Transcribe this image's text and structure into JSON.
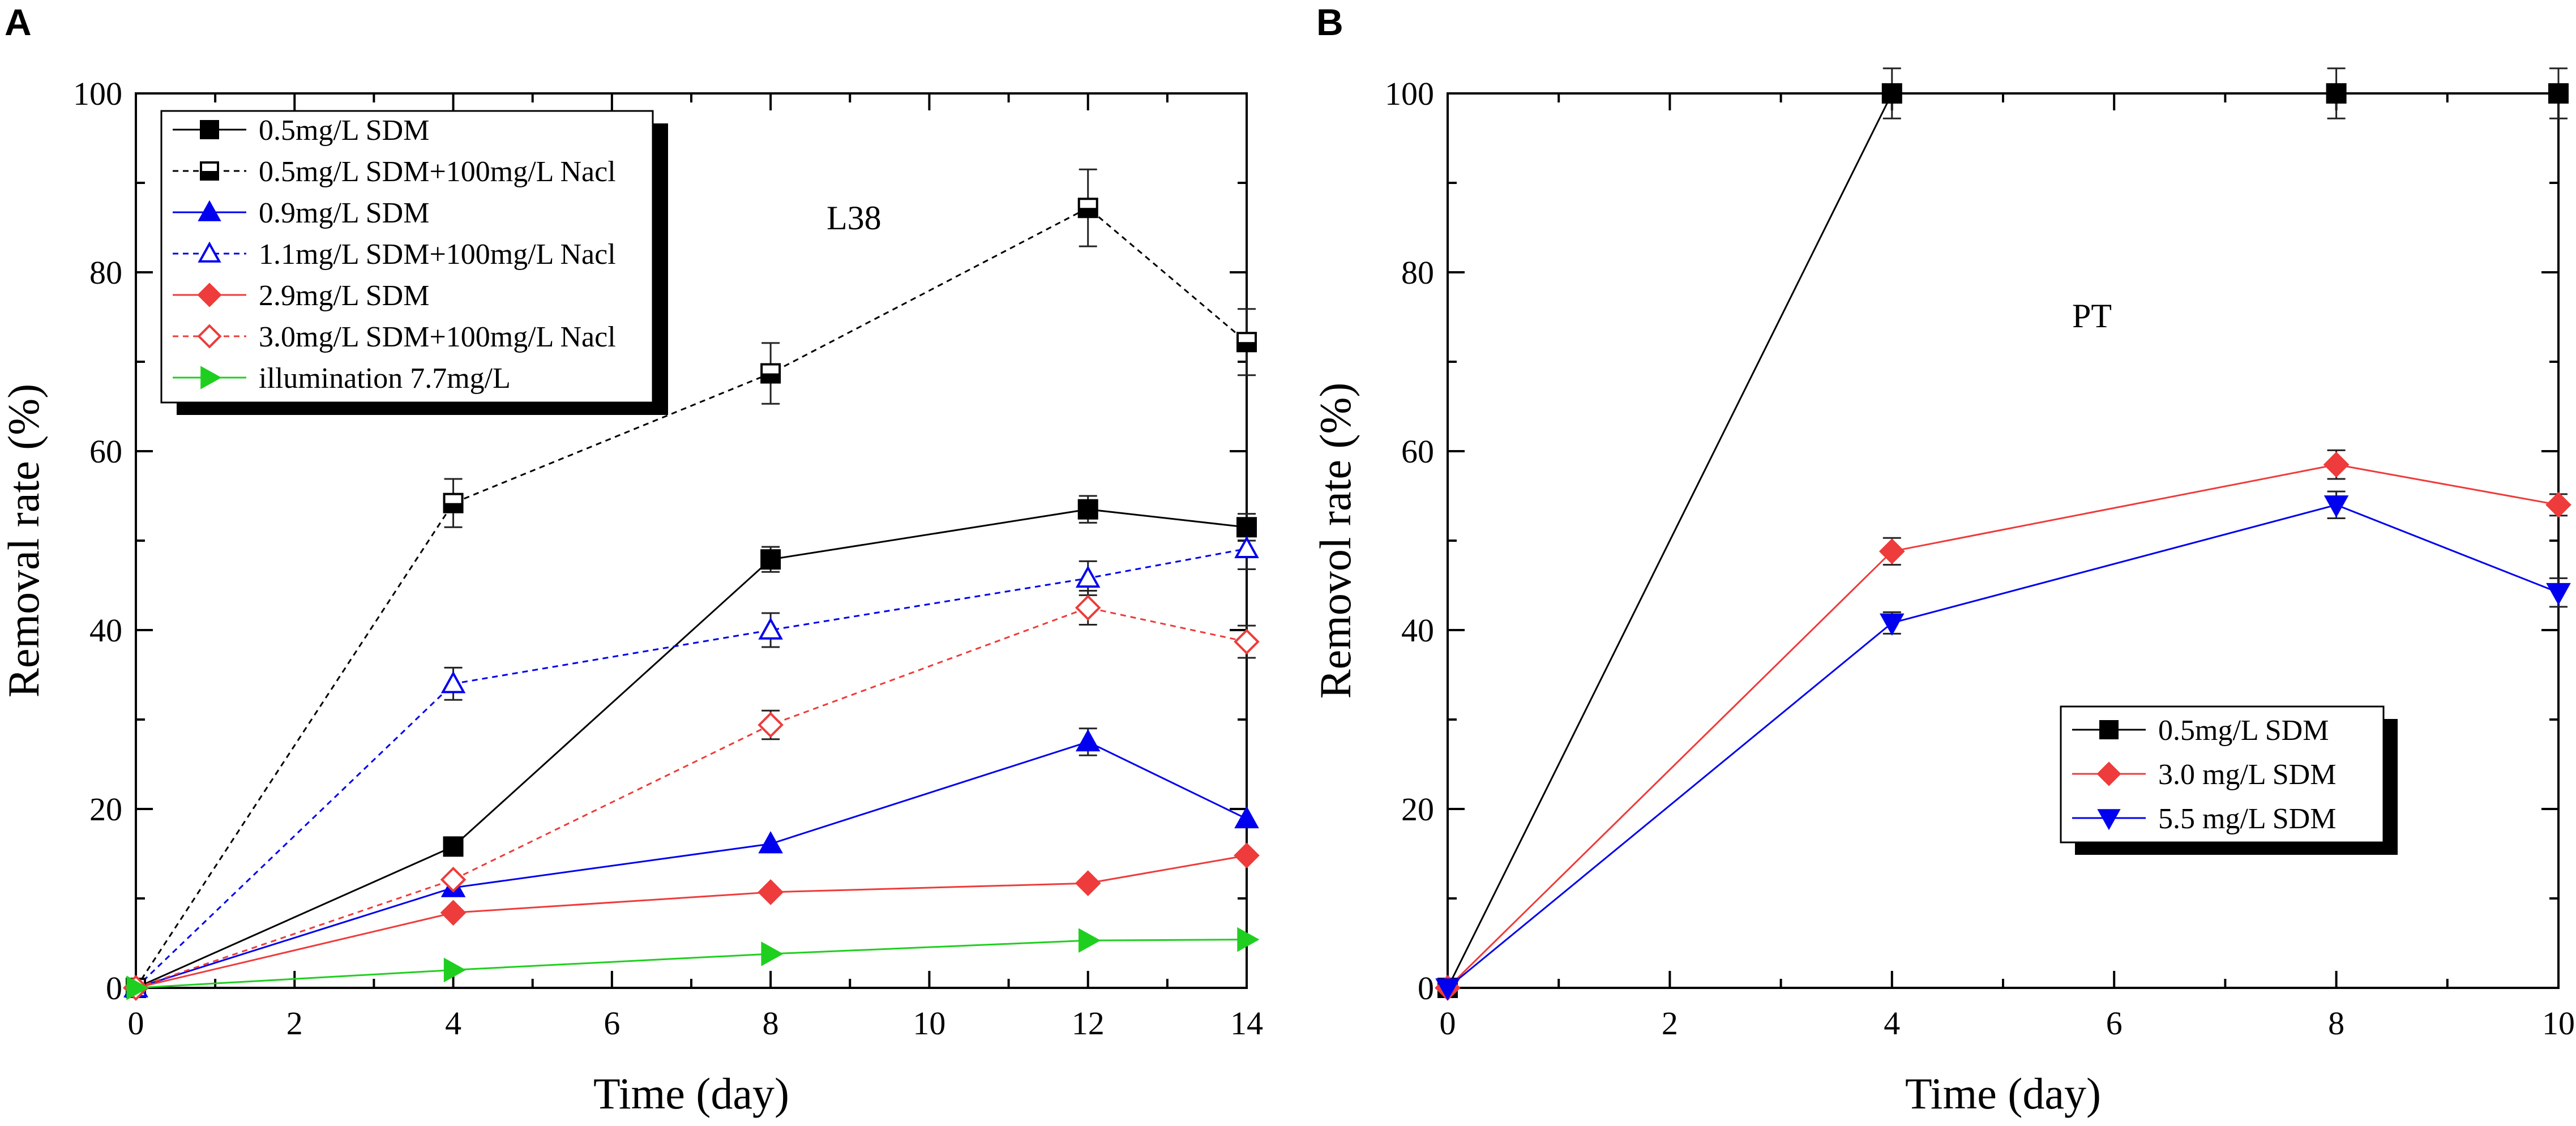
{
  "chart_data": [
    {
      "panel_label": "A",
      "type": "line",
      "annotation": "L38",
      "xlabel": "Time (day)",
      "ylabel": "Removal rate (%)",
      "xlim": [
        0,
        14
      ],
      "ylim": [
        0,
        100
      ],
      "xticks": [
        0,
        2,
        4,
        6,
        8,
        10,
        12,
        14
      ],
      "yticks": [
        0,
        20,
        40,
        60,
        80,
        100
      ],
      "legend_position": "top-left",
      "series": [
        {
          "name": "0.5mg/L SDM",
          "color": "#000000",
          "marker": "square",
          "filled": true,
          "dashed": false,
          "x": [
            0,
            4,
            8,
            12,
            14
          ],
          "y": [
            0,
            15.8,
            47.9,
            53.5,
            51.5
          ],
          "err": [
            0,
            0,
            1.4,
            1.5,
            1.5
          ]
        },
        {
          "name": "0.5mg/L SDM+100mg/L Nacl",
          "color": "#000000",
          "marker": "half-square",
          "filled": false,
          "dashed": true,
          "x": [
            0,
            4,
            8,
            12,
            14
          ],
          "y": [
            0,
            54.2,
            68.7,
            87.2,
            72.2
          ],
          "err": [
            0,
            2.7,
            3.4,
            4.3,
            3.7
          ]
        },
        {
          "name": "0.9mg/L SDM",
          "color": "#0000ee",
          "marker": "triangle-up",
          "filled": true,
          "dashed": false,
          "x": [
            0,
            4,
            8,
            12,
            14
          ],
          "y": [
            0,
            11.2,
            16.1,
            27.5,
            18.9
          ],
          "err": [
            0,
            0,
            0,
            1.5,
            0
          ]
        },
        {
          "name": "1.1mg/L SDM+100mg/L Nacl",
          "color": "#0000ee",
          "marker": "triangle-up",
          "filled": false,
          "dashed": true,
          "x": [
            0,
            4,
            8,
            12,
            14
          ],
          "y": [
            0,
            34,
            40,
            45.8,
            49.1
          ],
          "err": [
            0,
            1.8,
            1.9,
            1.9,
            2.3
          ]
        },
        {
          "name": "2.9mg/L SDM",
          "color": "#ee3b3b",
          "marker": "diamond",
          "filled": true,
          "dashed": false,
          "x": [
            0,
            4,
            8,
            12,
            14
          ],
          "y": [
            0,
            8.4,
            10.7,
            11.7,
            14.8
          ],
          "err": [
            0,
            0,
            0,
            0,
            0
          ]
        },
        {
          "name": "3.0mg/L SDM+100mg/L Nacl",
          "color": "#ee3b3b",
          "marker": "diamond",
          "filled": false,
          "dashed": true,
          "x": [
            0,
            4,
            8,
            12,
            14
          ],
          "y": [
            0,
            12.1,
            29.4,
            42.5,
            38.7
          ],
          "err": [
            0,
            0,
            1.6,
            1.9,
            1.8
          ]
        },
        {
          "name": "illumination 7.7mg/L",
          "color": "#1fcf1f",
          "marker": "triangle-right",
          "filled": true,
          "dashed": false,
          "x": [
            0,
            4,
            8,
            12,
            14
          ],
          "y": [
            0,
            2,
            3.8,
            5.3,
            5.4
          ],
          "err": [
            0,
            0,
            0,
            0,
            0
          ]
        }
      ]
    },
    {
      "panel_label": "B",
      "type": "line",
      "annotation": "PT",
      "xlabel": "Time (day)",
      "ylabel": "Removol rate (%)",
      "xlim": [
        0,
        10
      ],
      "ylim": [
        0,
        100
      ],
      "xticks": [
        0,
        2,
        4,
        6,
        8,
        10
      ],
      "yticks": [
        0,
        20,
        40,
        60,
        80,
        100
      ],
      "legend_position": "bottom-right",
      "series": [
        {
          "name": "0.5mg/L SDM",
          "color": "#000000",
          "marker": "square",
          "filled": true,
          "dashed": false,
          "x": [
            0,
            4,
            8,
            10
          ],
          "y": [
            0,
            100,
            100,
            100
          ],
          "err": [
            0,
            2.8,
            2.8,
            2.8
          ]
        },
        {
          "name": "3.0 mg/L SDM",
          "color": "#ee3b3b",
          "marker": "diamond",
          "filled": true,
          "dashed": false,
          "x": [
            0,
            4,
            8,
            10
          ],
          "y": [
            0,
            48.8,
            58.5,
            54
          ],
          "err": [
            0,
            1.5,
            1.6,
            1.2
          ]
        },
        {
          "name": "5.5 mg/L SDM",
          "color": "#0000ee",
          "marker": "triangle-down",
          "filled": true,
          "dashed": false,
          "x": [
            0,
            4,
            8,
            10
          ],
          "y": [
            0,
            40.8,
            54,
            44.2
          ],
          "err": [
            0,
            1.2,
            1.5,
            1.6
          ]
        }
      ]
    }
  ]
}
